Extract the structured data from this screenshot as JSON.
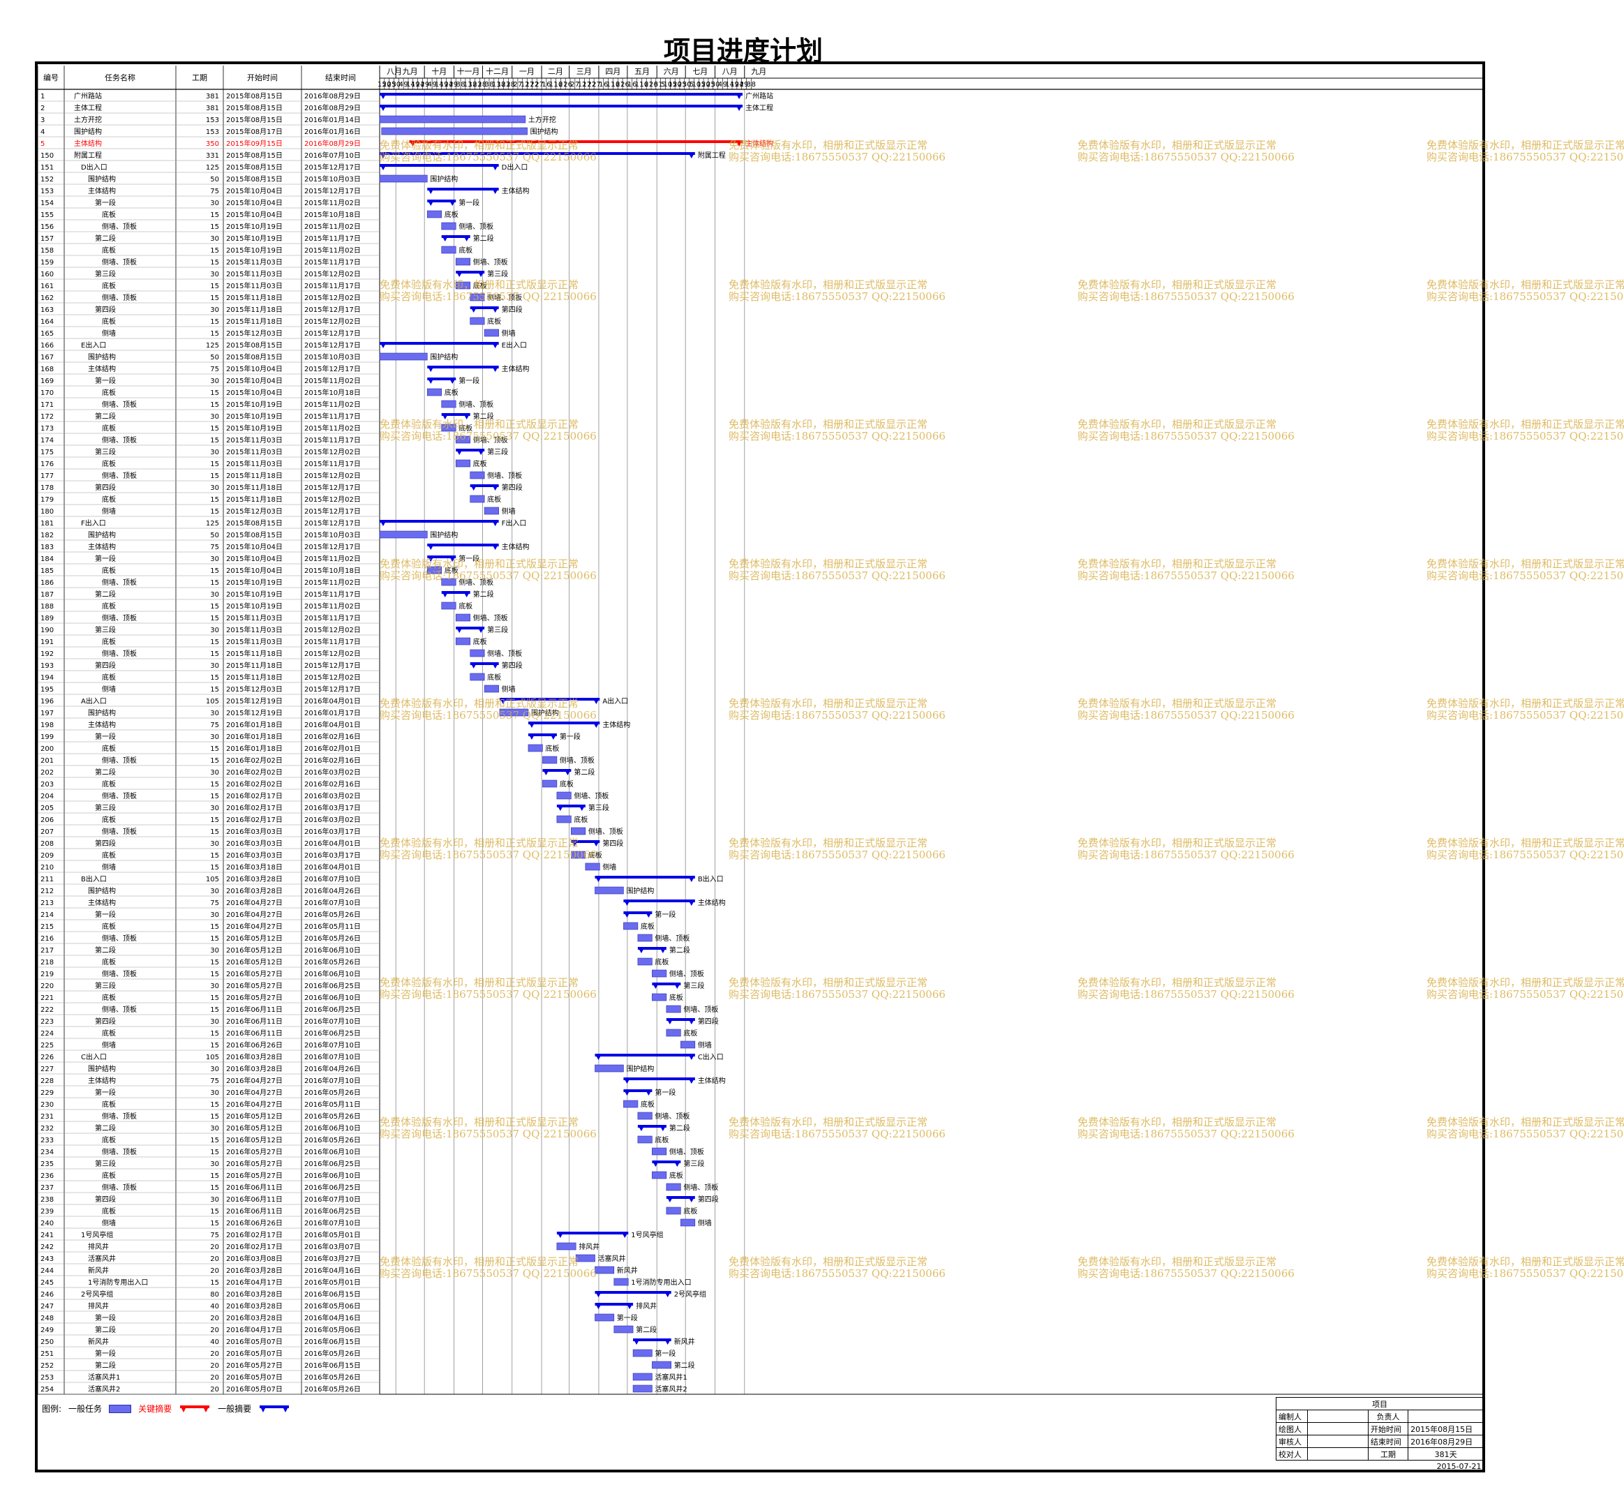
{
  "title": "项目进度计划",
  "headers": {
    "id": "编号",
    "name": "任务名称",
    "dur": "工期",
    "start": "开始时间",
    "end": "结束时间"
  },
  "months": [
    {
      "label": "八月",
      "days": [
        "15",
        "20",
        "25",
        "30"
      ]
    },
    {
      "label": "九月",
      "days": [
        "4",
        "9",
        "14",
        "19",
        "24",
        "29"
      ]
    },
    {
      "label": "十月",
      "days": [
        "4",
        "9",
        "14",
        "19",
        "24",
        "29"
      ]
    },
    {
      "label": "十一月",
      "days": [
        "3",
        "8",
        "13",
        "18",
        "23",
        "28"
      ]
    },
    {
      "label": "十二月",
      "days": [
        "3",
        "8",
        "13",
        "18",
        "23",
        "28"
      ]
    },
    {
      "label": "一月",
      "days": [
        "2",
        "7",
        "12",
        "17",
        "22",
        "27"
      ]
    },
    {
      "label": "二月",
      "days": [
        "1",
        "6",
        "11",
        "16",
        "21",
        "26"
      ]
    },
    {
      "label": "三月",
      "days": [
        "2",
        "7",
        "12",
        "17",
        "22",
        "27"
      ]
    },
    {
      "label": "四月",
      "days": [
        "1",
        "6",
        "11",
        "16",
        "21",
        "26"
      ]
    },
    {
      "label": "五月",
      "days": [
        "1",
        "6",
        "11",
        "16",
        "21",
        "26",
        "31"
      ]
    },
    {
      "label": "六月",
      "days": [
        "5",
        "10",
        "15",
        "20",
        "25",
        "30"
      ]
    },
    {
      "label": "七月",
      "days": [
        "5",
        "10",
        "15",
        "20",
        "25",
        "30"
      ]
    },
    {
      "label": "八月",
      "days": [
        "4",
        "9",
        "14",
        "19",
        "24",
        "29"
      ]
    },
    {
      "label": "九月",
      "days": [
        "3",
        "8"
      ]
    }
  ],
  "tasks": [
    [
      "1",
      "广州路站",
      "381",
      "2015年08月15日",
      "2016年08月29日",
      "s",
      0,
      "广州路站"
    ],
    [
      "2",
      "主体工程",
      "381",
      "2015年08月15日",
      "2016年08月29日",
      "s",
      0,
      "主体工程"
    ],
    [
      "3",
      "土方开挖",
      "153",
      "2015年08月15日",
      "2016年01月14日",
      "t",
      0,
      "土方开挖"
    ],
    [
      "4",
      "围护结构",
      "153",
      "2015年08月17日",
      "2016年01月16日",
      "t",
      0,
      "围护结构"
    ],
    [
      "5",
      "主体结构",
      "350",
      "2015年09月15日",
      "2016年08月29日",
      "c",
      0,
      "主体结构"
    ],
    [
      "150",
      "附属工程",
      "331",
      "2015年08月15日",
      "2016年07月10日",
      "s",
      0,
      "附属工程"
    ],
    [
      "151",
      "D出入口",
      "125",
      "2015年08月15日",
      "2015年12月17日",
      "s",
      1,
      "D出入口"
    ],
    [
      "152",
      "围护结构",
      "50",
      "2015年08月15日",
      "2015年10月03日",
      "t",
      2,
      "围护结构"
    ],
    [
      "153",
      "主体结构",
      "75",
      "2015年10月04日",
      "2015年12月17日",
      "s",
      2,
      "主体结构"
    ],
    [
      "154",
      "第一段",
      "30",
      "2015年10月04日",
      "2015年11月02日",
      "s",
      3,
      "第一段"
    ],
    [
      "155",
      "底板",
      "15",
      "2015年10月04日",
      "2015年10月18日",
      "t",
      4,
      "底板"
    ],
    [
      "156",
      "侧墙、顶板",
      "15",
      "2015年10月19日",
      "2015年11月02日",
      "t",
      4,
      "侧墙、顶板"
    ],
    [
      "157",
      "第二段",
      "30",
      "2015年10月19日",
      "2015年11月17日",
      "s",
      3,
      "第二段"
    ],
    [
      "158",
      "底板",
      "15",
      "2015年10月19日",
      "2015年11月02日",
      "t",
      4,
      "底板"
    ],
    [
      "159",
      "侧墙、顶板",
      "15",
      "2015年11月03日",
      "2015年11月17日",
      "t",
      4,
      "侧墙、顶板"
    ],
    [
      "160",
      "第三段",
      "30",
      "2015年11月03日",
      "2015年12月02日",
      "s",
      3,
      "第三段"
    ],
    [
      "161",
      "底板",
      "15",
      "2015年11月03日",
      "2015年11月17日",
      "t",
      4,
      "底板"
    ],
    [
      "162",
      "侧墙、顶板",
      "15",
      "2015年11月18日",
      "2015年12月02日",
      "t",
      4,
      "侧墙、顶板"
    ],
    [
      "163",
      "第四段",
      "30",
      "2015年11月18日",
      "2015年12月17日",
      "s",
      3,
      "第四段"
    ],
    [
      "164",
      "底板",
      "15",
      "2015年11月18日",
      "2015年12月02日",
      "t",
      4,
      "底板"
    ],
    [
      "165",
      "侧墙",
      "15",
      "2015年12月03日",
      "2015年12月17日",
      "t",
      4,
      "侧墙"
    ],
    [
      "166",
      "E出入口",
      "125",
      "2015年08月15日",
      "2015年12月17日",
      "s",
      1,
      "E出入口"
    ],
    [
      "167",
      "围护结构",
      "50",
      "2015年08月15日",
      "2015年10月03日",
      "t",
      2,
      "围护结构"
    ],
    [
      "168",
      "主体结构",
      "75",
      "2015年10月04日",
      "2015年12月17日",
      "s",
      2,
      "主体结构"
    ],
    [
      "169",
      "第一段",
      "30",
      "2015年10月04日",
      "2015年11月02日",
      "s",
      3,
      "第一段"
    ],
    [
      "170",
      "底板",
      "15",
      "2015年10月04日",
      "2015年10月18日",
      "t",
      4,
      "底板"
    ],
    [
      "171",
      "侧墙、顶板",
      "15",
      "2015年10月19日",
      "2015年11月02日",
      "t",
      4,
      "侧墙、顶板"
    ],
    [
      "172",
      "第二段",
      "30",
      "2015年10月19日",
      "2015年11月17日",
      "s",
      3,
      "第二段"
    ],
    [
      "173",
      "底板",
      "15",
      "2015年10月19日",
      "2015年11月02日",
      "t",
      4,
      "底板"
    ],
    [
      "174",
      "侧墙、顶板",
      "15",
      "2015年11月03日",
      "2015年11月17日",
      "t",
      4,
      "侧墙、顶板"
    ],
    [
      "175",
      "第三段",
      "30",
      "2015年11月03日",
      "2015年12月02日",
      "s",
      3,
      "第三段"
    ],
    [
      "176",
      "底板",
      "15",
      "2015年11月03日",
      "2015年11月17日",
      "t",
      4,
      "底板"
    ],
    [
      "177",
      "侧墙、顶板",
      "15",
      "2015年11月18日",
      "2015年12月02日",
      "t",
      4,
      "侧墙、顶板"
    ],
    [
      "178",
      "第四段",
      "30",
      "2015年11月18日",
      "2015年12月17日",
      "s",
      3,
      "第四段"
    ],
    [
      "179",
      "底板",
      "15",
      "2015年11月18日",
      "2015年12月02日",
      "t",
      4,
      "底板"
    ],
    [
      "180",
      "侧墙",
      "15",
      "2015年12月03日",
      "2015年12月17日",
      "t",
      4,
      "侧墙"
    ],
    [
      "181",
      "F出入口",
      "125",
      "2015年08月15日",
      "2015年12月17日",
      "s",
      1,
      "F出入口"
    ],
    [
      "182",
      "围护结构",
      "50",
      "2015年08月15日",
      "2015年10月03日",
      "t",
      2,
      "围护结构"
    ],
    [
      "183",
      "主体结构",
      "75",
      "2015年10月04日",
      "2015年12月17日",
      "s",
      2,
      "主体结构"
    ],
    [
      "184",
      "第一段",
      "30",
      "2015年10月04日",
      "2015年11月02日",
      "s",
      3,
      "第一段"
    ],
    [
      "185",
      "底板",
      "15",
      "2015年10月04日",
      "2015年10月18日",
      "t",
      4,
      "底板"
    ],
    [
      "186",
      "侧墙、顶板",
      "15",
      "2015年10月19日",
      "2015年11月02日",
      "t",
      4,
      "侧墙、顶板"
    ],
    [
      "187",
      "第二段",
      "30",
      "2015年10月19日",
      "2015年11月17日",
      "s",
      3,
      "第二段"
    ],
    [
      "188",
      "底板",
      "15",
      "2015年10月19日",
      "2015年11月02日",
      "t",
      4,
      "底板"
    ],
    [
      "189",
      "侧墙、顶板",
      "15",
      "2015年11月03日",
      "2015年11月17日",
      "t",
      4,
      "侧墙、顶板"
    ],
    [
      "190",
      "第三段",
      "30",
      "2015年11月03日",
      "2015年12月02日",
      "s",
      3,
      "第三段"
    ],
    [
      "191",
      "底板",
      "15",
      "2015年11月03日",
      "2015年11月17日",
      "t",
      4,
      "底板"
    ],
    [
      "192",
      "侧墙、顶板",
      "15",
      "2015年11月18日",
      "2015年12月02日",
      "t",
      4,
      "侧墙、顶板"
    ],
    [
      "193",
      "第四段",
      "30",
      "2015年11月18日",
      "2015年12月17日",
      "s",
      3,
      "第四段"
    ],
    [
      "194",
      "底板",
      "15",
      "2015年11月18日",
      "2015年12月02日",
      "t",
      4,
      "底板"
    ],
    [
      "195",
      "侧墙",
      "15",
      "2015年12月03日",
      "2015年12月17日",
      "t",
      4,
      "侧墙"
    ],
    [
      "196",
      "A出入口",
      "105",
      "2015年12月19日",
      "2016年04月01日",
      "s",
      1,
      "A出入口"
    ],
    [
      "197",
      "围护结构",
      "30",
      "2015年12月19日",
      "2016年01月17日",
      "t",
      2,
      "围护结构"
    ],
    [
      "198",
      "主体结构",
      "75",
      "2016年01月18日",
      "2016年04月01日",
      "s",
      2,
      "主体结构"
    ],
    [
      "199",
      "第一段",
      "30",
      "2016年01月18日",
      "2016年02月16日",
      "s",
      3,
      "第一段"
    ],
    [
      "200",
      "底板",
      "15",
      "2016年01月18日",
      "2016年02月01日",
      "t",
      4,
      "底板"
    ],
    [
      "201",
      "侧墙、顶板",
      "15",
      "2016年02月02日",
      "2016年02月16日",
      "t",
      4,
      "侧墙、顶板"
    ],
    [
      "202",
      "第二段",
      "30",
      "2016年02月02日",
      "2016年03月02日",
      "s",
      3,
      "第二段"
    ],
    [
      "203",
      "底板",
      "15",
      "2016年02月02日",
      "2016年02月16日",
      "t",
      4,
      "底板"
    ],
    [
      "204",
      "侧墙、顶板",
      "15",
      "2016年02月17日",
      "2016年03月02日",
      "t",
      4,
      "侧墙、顶板"
    ],
    [
      "205",
      "第三段",
      "30",
      "2016年02月17日",
      "2016年03月17日",
      "s",
      3,
      "第三段"
    ],
    [
      "206",
      "底板",
      "15",
      "2016年02月17日",
      "2016年03月02日",
      "t",
      4,
      "底板"
    ],
    [
      "207",
      "侧墙、顶板",
      "15",
      "2016年03月03日",
      "2016年03月17日",
      "t",
      4,
      "侧墙、顶板"
    ],
    [
      "208",
      "第四段",
      "30",
      "2016年03月03日",
      "2016年04月01日",
      "s",
      3,
      "第四段"
    ],
    [
      "209",
      "底板",
      "15",
      "2016年03月03日",
      "2016年03月17日",
      "t",
      4,
      "底板"
    ],
    [
      "210",
      "侧墙",
      "15",
      "2016年03月18日",
      "2016年04月01日",
      "t",
      4,
      "侧墙"
    ],
    [
      "211",
      "B出入口",
      "105",
      "2016年03月28日",
      "2016年07月10日",
      "s",
      1,
      "B出入口"
    ],
    [
      "212",
      "围护结构",
      "30",
      "2016年03月28日",
      "2016年04月26日",
      "t",
      2,
      "围护结构"
    ],
    [
      "213",
      "主体结构",
      "75",
      "2016年04月27日",
      "2016年07月10日",
      "s",
      2,
      "主体结构"
    ],
    [
      "214",
      "第一段",
      "30",
      "2016年04月27日",
      "2016年05月26日",
      "s",
      3,
      "第一段"
    ],
    [
      "215",
      "底板",
      "15",
      "2016年04月27日",
      "2016年05月11日",
      "t",
      4,
      "底板"
    ],
    [
      "216",
      "侧墙、顶板",
      "15",
      "2016年05月12日",
      "2016年05月26日",
      "t",
      4,
      "侧墙、顶板"
    ],
    [
      "217",
      "第二段",
      "30",
      "2016年05月12日",
      "2016年06月10日",
      "s",
      3,
      "第二段"
    ],
    [
      "218",
      "底板",
      "15",
      "2016年05月12日",
      "2016年05月26日",
      "t",
      4,
      "底板"
    ],
    [
      "219",
      "侧墙、顶板",
      "15",
      "2016年05月27日",
      "2016年06月10日",
      "t",
      4,
      "侧墙、顶板"
    ],
    [
      "220",
      "第三段",
      "30",
      "2016年05月27日",
      "2016年06月25日",
      "s",
      3,
      "第三段"
    ],
    [
      "221",
      "底板",
      "15",
      "2016年05月27日",
      "2016年06月10日",
      "t",
      4,
      "底板"
    ],
    [
      "222",
      "侧墙、顶板",
      "15",
      "2016年06月11日",
      "2016年06月25日",
      "t",
      4,
      "侧墙、顶板"
    ],
    [
      "223",
      "第四段",
      "30",
      "2016年06月11日",
      "2016年07月10日",
      "s",
      3,
      "第四段"
    ],
    [
      "224",
      "底板",
      "15",
      "2016年06月11日",
      "2016年06月25日",
      "t",
      4,
      "底板"
    ],
    [
      "225",
      "侧墙",
      "15",
      "2016年06月26日",
      "2016年07月10日",
      "t",
      4,
      "侧墙"
    ],
    [
      "226",
      "C出入口",
      "105",
      "2016年03月28日",
      "2016年07月10日",
      "s",
      1,
      "C出入口"
    ],
    [
      "227",
      "围护结构",
      "30",
      "2016年03月28日",
      "2016年04月26日",
      "t",
      2,
      "围护结构"
    ],
    [
      "228",
      "主体结构",
      "75",
      "2016年04月27日",
      "2016年07月10日",
      "s",
      2,
      "主体结构"
    ],
    [
      "229",
      "第一段",
      "30",
      "2016年04月27日",
      "2016年05月26日",
      "s",
      3,
      "第一段"
    ],
    [
      "230",
      "底板",
      "15",
      "2016年04月27日",
      "2016年05月11日",
      "t",
      4,
      "底板"
    ],
    [
      "231",
      "侧墙、顶板",
      "15",
      "2016年05月12日",
      "2016年05月26日",
      "t",
      4,
      "侧墙、顶板"
    ],
    [
      "232",
      "第二段",
      "30",
      "2016年05月12日",
      "2016年06月10日",
      "s",
      3,
      "第二段"
    ],
    [
      "233",
      "底板",
      "15",
      "2016年05月12日",
      "2016年05月26日",
      "t",
      4,
      "底板"
    ],
    [
      "234",
      "侧墙、顶板",
      "15",
      "2016年05月27日",
      "2016年06月10日",
      "t",
      4,
      "侧墙、顶板"
    ],
    [
      "235",
      "第三段",
      "30",
      "2016年05月27日",
      "2016年06月25日",
      "s",
      3,
      "第三段"
    ],
    [
      "236",
      "底板",
      "15",
      "2016年05月27日",
      "2016年06月10日",
      "t",
      4,
      "底板"
    ],
    [
      "237",
      "侧墙、顶板",
      "15",
      "2016年06月11日",
      "2016年06月25日",
      "t",
      4,
      "侧墙、顶板"
    ],
    [
      "238",
      "第四段",
      "30",
      "2016年06月11日",
      "2016年07月10日",
      "s",
      3,
      "第四段"
    ],
    [
      "239",
      "底板",
      "15",
      "2016年06月11日",
      "2016年06月25日",
      "t",
      4,
      "底板"
    ],
    [
      "240",
      "侧墙",
      "15",
      "2016年06月26日",
      "2016年07月10日",
      "t",
      4,
      "侧墙"
    ],
    [
      "241",
      "1号风亭组",
      "75",
      "2016年02月17日",
      "2016年05月01日",
      "s",
      1,
      "1号风亭组"
    ],
    [
      "242",
      "排风井",
      "20",
      "2016年02月17日",
      "2016年03月07日",
      "t",
      2,
      "排风井"
    ],
    [
      "243",
      "活塞风井",
      "20",
      "2016年03月08日",
      "2016年03月27日",
      "t",
      2,
      "活塞风井"
    ],
    [
      "244",
      "新风井",
      "20",
      "2016年03月28日",
      "2016年04月16日",
      "t",
      2,
      "新风井"
    ],
    [
      "245",
      "1号消防专用出入口",
      "15",
      "2016年04月17日",
      "2016年05月01日",
      "t",
      2,
      "1号消防专用出入口"
    ],
    [
      "246",
      "2号风亭组",
      "80",
      "2016年03月28日",
      "2016年06月15日",
      "s",
      1,
      "2号风亭组"
    ],
    [
      "247",
      "排风井",
      "40",
      "2016年03月28日",
      "2016年05月06日",
      "s",
      2,
      "排风井"
    ],
    [
      "248",
      "第一段",
      "20",
      "2016年03月28日",
      "2016年04月16日",
      "t",
      3,
      "第一段"
    ],
    [
      "249",
      "第二段",
      "20",
      "2016年04月17日",
      "2016年05月06日",
      "t",
      3,
      "第二段"
    ],
    [
      "250",
      "新风井",
      "40",
      "2016年05月07日",
      "2016年06月15日",
      "s",
      2,
      "新风井"
    ],
    [
      "251",
      "第一段",
      "20",
      "2016年05月07日",
      "2016年05月26日",
      "t",
      3,
      "第一段"
    ],
    [
      "252",
      "第二段",
      "20",
      "2016年05月27日",
      "2016年06月15日",
      "t",
      3,
      "第二段"
    ],
    [
      "253",
      "活塞风井1",
      "20",
      "2016年05月07日",
      "2016年05月26日",
      "t",
      2,
      "活塞风井1"
    ],
    [
      "254",
      "活塞风井2",
      "20",
      "2016年05月07日",
      "2016年05月26日",
      "t",
      2,
      "活塞风井2"
    ]
  ],
  "watermark": {
    "line1": "免费体验版有水印，相册和正式版显示正常",
    "line2": "购买咨询电话:18675550537 QQ:22150066"
  },
  "legend": {
    "prefix": "图例:",
    "normal": "一般任务",
    "critical": "关键摘要",
    "summary": "一般摘要"
  },
  "titleblock": {
    "header": "项目",
    "rows": [
      [
        "编制人",
        "负责人",
        ""
      ],
      [
        "绘图人",
        "开始时间",
        "2015年08月15日"
      ],
      [
        "审核人",
        "结束时间",
        "2016年08月29日"
      ],
      [
        "校对人",
        "工期",
        "381天"
      ]
    ],
    "date": "2015-07-21"
  },
  "colors": {
    "task": "#6a6cf0",
    "summary": "#0000e6",
    "critical": "#ff0000"
  }
}
